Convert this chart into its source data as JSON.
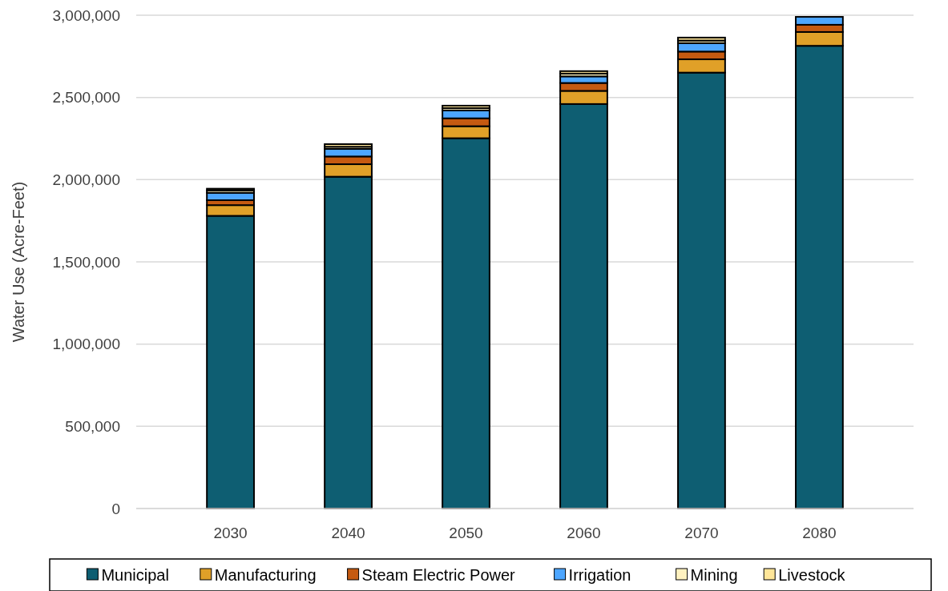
{
  "chart_data": {
    "type": "bar",
    "stacked": true,
    "ylabel": "Water Use (Acre-Feet)",
    "categories": [
      "2030",
      "2040",
      "2050",
      "2060",
      "2070",
      "2080"
    ],
    "series": [
      {
        "name": "Municipal",
        "color": "#0e5e72",
        "values": [
          1780000,
          2018000,
          2252000,
          2460000,
          2651000,
          2814000
        ]
      },
      {
        "name": "Manufacturing",
        "color": "#e0a028",
        "values": [
          65000,
          76000,
          73000,
          80000,
          81000,
          84000
        ]
      },
      {
        "name": "Steam Electric Power",
        "color": "#c55a11",
        "values": [
          30000,
          47000,
          48000,
          48000,
          47000,
          44000
        ]
      },
      {
        "name": "Irrigation",
        "color": "#4da6ff",
        "values": [
          45000,
          46000,
          48000,
          40000,
          51000,
          48000
        ]
      },
      {
        "name": "Mining",
        "color": "#fff2c0",
        "values": [
          15000,
          13000,
          14000,
          17000,
          16000,
          null
        ]
      },
      {
        "name": "Livestock",
        "color": "#ffe699",
        "values": [
          10000,
          16000,
          15000,
          15000,
          18000,
          null
        ]
      }
    ],
    "ylim": [
      0,
      3000000
    ],
    "yticks": [
      {
        "value": 0,
        "label": "0"
      },
      {
        "value": 500000,
        "label": "500,000"
      },
      {
        "value": 1000000,
        "label": "1,000,000"
      },
      {
        "value": 1500000,
        "label": "1,500,000"
      },
      {
        "value": 2000000,
        "label": "2,000,000"
      },
      {
        "value": 2500000,
        "label": "2,500,000"
      },
      {
        "value": 3000000,
        "label": "3,000,000"
      }
    ],
    "grid": "y",
    "legend": "bottom"
  }
}
